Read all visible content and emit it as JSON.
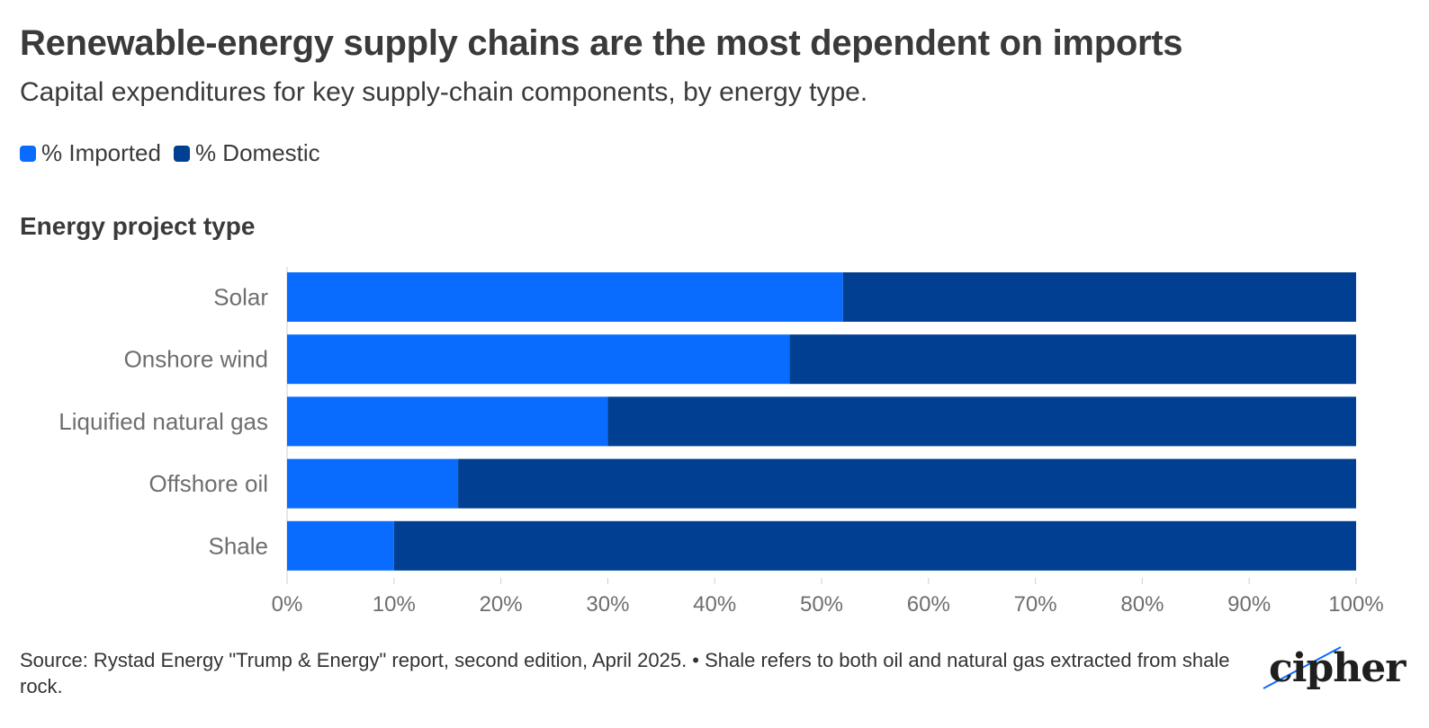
{
  "header": {
    "title": "Renewable-energy supply chains are the most dependent on imports",
    "subtitle": "Capital expenditures for key supply-chain components, by energy type."
  },
  "legend": {
    "imported_label": "% Imported",
    "domestic_label": "% Domestic"
  },
  "colors": {
    "imported": "#0a6cff",
    "domestic": "#003f91",
    "text": "#3a3a3a",
    "tick": "#6e6e6e"
  },
  "chart_data": {
    "type": "bar",
    "orientation": "horizontal",
    "stacked": true,
    "ylabel": "Energy project type",
    "categories": [
      "Solar",
      "Onshore wind",
      "Liquified natural gas",
      "Offshore oil",
      "Shale"
    ],
    "series": [
      {
        "name": "% Imported",
        "values": [
          52,
          47,
          30,
          16,
          10
        ]
      },
      {
        "name": "% Domestic",
        "values": [
          48,
          53,
          70,
          84,
          90
        ]
      }
    ],
    "xlim": [
      0,
      100
    ],
    "xticks": [
      "0%",
      "10%",
      "20%",
      "30%",
      "40%",
      "50%",
      "60%",
      "70%",
      "80%",
      "90%",
      "100%"
    ],
    "grid": false,
    "legend_position": "top-left"
  },
  "footer": {
    "source": "Source: Rystad Energy \"Trump & Energy\" report, second edition, April 2025. • Shale refers to both oil and natural gas extracted from shale rock.",
    "logo_text": "cipher"
  }
}
